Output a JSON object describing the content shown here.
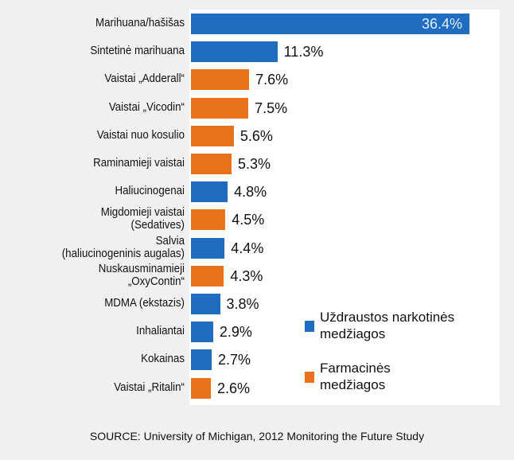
{
  "chart_data": {
    "type": "bar",
    "orientation": "horizontal",
    "categories": [
      "Marihuana/hašišas",
      "Sintetinė marihuana",
      "Vaistai „Adderall“",
      "Vaistai „Vicodin“",
      "Vaistai nuo kosulio",
      "Raminamieji vaistai",
      "Haliucinogenai",
      "Migdomieji vaistai (Sedatives)",
      "Salvia (haliucinogeninis augalas)",
      "Nuskausminamieji „OxyContin“",
      "MDMA (ekstazis)",
      "Inhaliantai",
      "Kokainas",
      "Vaistai „Ritalin“"
    ],
    "label_lines": [
      [
        "Marihuana/hašišas"
      ],
      [
        "Sintetinė marihuana"
      ],
      [
        "Vaistai „Adderall“"
      ],
      [
        "Vaistai „Vicodin“"
      ],
      [
        "Vaistai nuo kosulio"
      ],
      [
        "Raminamieji vaistai"
      ],
      [
        "Haliucinogenai"
      ],
      [
        "Migdomieji vaistai",
        "(Sedatives)"
      ],
      [
        "Salvia",
        "(haliucinogeninis augalas)"
      ],
      [
        "Nuskausminamieji",
        "„OxyContin“"
      ],
      [
        "MDMA (ekstazis)"
      ],
      [
        "Inhaliantai"
      ],
      [
        "Kokainas"
      ],
      [
        "Vaistai „Ritalin“"
      ]
    ],
    "values": [
      36.4,
      11.3,
      7.6,
      7.5,
      5.6,
      5.3,
      4.8,
      4.5,
      4.4,
      4.3,
      3.8,
      2.9,
      2.7,
      2.6
    ],
    "value_labels": [
      "36.4%",
      "11.3%",
      "7.6%",
      "7.5%",
      "5.6%",
      "5.3%",
      "4.8%",
      "4.5%",
      "4.4%",
      "4.3%",
      "3.8%",
      "2.9%",
      "2.7%",
      "2.6%"
    ],
    "groups": [
      0,
      0,
      1,
      1,
      1,
      1,
      0,
      1,
      0,
      1,
      0,
      0,
      0,
      1
    ],
    "legend": [
      {
        "name": "Uždraustos narkotinės medžiagos",
        "lines": [
          "Uždraustos narkotinės",
          "medžiagos"
        ],
        "color": "#1f6cc1"
      },
      {
        "name": "Farmacinės medžiagos",
        "lines": [
          "Farmacinės",
          "medžiagos"
        ],
        "color": "#e8731d"
      }
    ],
    "legend_position": "bottom-right",
    "xlim": [
      0,
      36.4
    ],
    "source": "SOURCE: University of Michigan, 2012 Monitoring the Future Study"
  }
}
